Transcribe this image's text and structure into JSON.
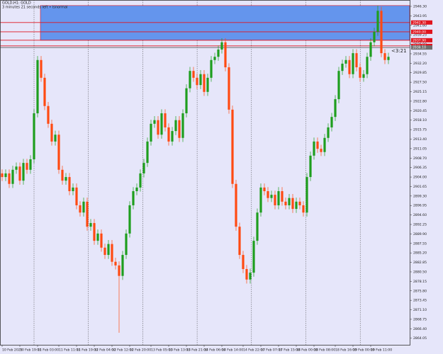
{
  "chart_data": {
    "type": "candlestick",
    "title": "GOLD,H1: GOLD",
    "subtitle": "3 minutes 21 seconds left • Isnormal",
    "timer": "<3:21",
    "up_color": "#1e9e1e",
    "down_color": "#ff4a12",
    "categories": [
      "10 Feb 2025",
      null,
      null,
      null,
      null,
      "10 Feb 19:00",
      null,
      null,
      null,
      null,
      "11 Feb 03:00",
      null,
      null,
      null,
      null,
      null,
      "11 Feb 11:00",
      null,
      null,
      null,
      null,
      "11 Feb 19:00",
      null,
      null,
      null,
      null,
      "12 Feb 04:00",
      null,
      null,
      null,
      null,
      "12 Feb 12:00",
      null,
      null,
      null,
      null,
      "12 Feb 20:00",
      null,
      null,
      null,
      null,
      null,
      "13 Feb 05:00",
      null,
      null,
      null,
      null,
      "13 Feb 13:00",
      null,
      null,
      null,
      null,
      "13 Feb 21:00",
      null,
      null,
      null,
      null,
      "14 Feb 06:00",
      null,
      null,
      null,
      null,
      "14 Feb 14:00",
      null,
      null,
      null,
      null,
      null,
      "14 Feb 22:00",
      null,
      null,
      null,
      null,
      "17 Feb 07:00",
      null,
      null,
      null,
      null,
      "17 Feb 15:00",
      null,
      null,
      null,
      null,
      "18 Feb 00:00",
      null,
      null,
      null,
      null,
      "18 Feb 08:00",
      null,
      null,
      null,
      null,
      null,
      "18 Feb 16:00",
      null,
      null,
      null,
      null,
      "19 Feb 00:00",
      null,
      null,
      null,
      null,
      "19 Feb 11:00",
      null,
      null,
      null,
      null,
      null
    ],
    "ohlc": [
      [
        2904.9,
        2905.9,
        2903.0,
        2904.0
      ],
      [
        2904.0,
        2905.9,
        2903.0,
        2904.9
      ],
      [
        2904.9,
        2905.9,
        2901.3,
        2902.3
      ],
      [
        2902.3,
        2906.8,
        2901.3,
        2905.8
      ],
      [
        2905.8,
        2907.6,
        2904.8,
        2906.6
      ],
      [
        2906.6,
        2907.6,
        2902.1,
        2903.1
      ],
      [
        2903.1,
        2908.5,
        2902.1,
        2907.5
      ],
      [
        2907.5,
        2908.5,
        2904.8,
        2905.8
      ],
      [
        2905.8,
        2909.4,
        2904.8,
        2908.4
      ],
      [
        2908.4,
        2920.8,
        2907.4,
        2919.8
      ],
      [
        2919.8,
        2934.0,
        2918.8,
        2933.0
      ],
      [
        2933.0,
        2934.0,
        2927.6,
        2928.6
      ],
      [
        2928.6,
        2929.6,
        2920.6,
        2921.6
      ],
      [
        2921.6,
        2922.6,
        2916.2,
        2917.2
      ],
      [
        2917.2,
        2918.2,
        2911.8,
        2912.8
      ],
      [
        2912.8,
        2915.5,
        2911.8,
        2914.5
      ],
      [
        2914.5,
        2915.5,
        2904.8,
        2905.8
      ],
      [
        2905.8,
        2906.8,
        2902.1,
        2903.1
      ],
      [
        2903.1,
        2905.0,
        2902.1,
        2904.0
      ],
      [
        2904.0,
        2905.0,
        2899.5,
        2900.5
      ],
      [
        2900.5,
        2902.4,
        2899.5,
        2901.4
      ],
      [
        2901.4,
        2902.4,
        2896.0,
        2897.0
      ],
      [
        2897.0,
        2898.0,
        2894.2,
        2895.2
      ],
      [
        2895.2,
        2898.9,
        2894.2,
        2897.9
      ],
      [
        2897.9,
        2898.9,
        2890.7,
        2891.7
      ],
      [
        2891.7,
        2893.6,
        2890.7,
        2892.6
      ],
      [
        2892.6,
        2893.6,
        2887.2,
        2888.2
      ],
      [
        2888.2,
        2891.0,
        2887.2,
        2890.0
      ],
      [
        2890.0,
        2891.0,
        2885.5,
        2886.5
      ],
      [
        2886.5,
        2887.5,
        2883.7,
        2884.7
      ],
      [
        2884.7,
        2888.4,
        2883.7,
        2887.4
      ],
      [
        2887.4,
        2888.4,
        2882.0,
        2883.0
      ],
      [
        2883.0,
        2884.0,
        2881.1,
        2882.1
      ],
      [
        2882.1,
        2883.1,
        2865.4,
        2879.5
      ],
      [
        2879.5,
        2885.7,
        2878.5,
        2884.7
      ],
      [
        2884.7,
        2891.0,
        2883.7,
        2890.0
      ],
      [
        2890.0,
        2898.0,
        2889.0,
        2897.0
      ],
      [
        2897.0,
        2901.5,
        2896.0,
        2900.5
      ],
      [
        2900.5,
        2902.4,
        2899.5,
        2901.4
      ],
      [
        2901.4,
        2905.9,
        2900.4,
        2904.9
      ],
      [
        2904.9,
        2908.5,
        2903.9,
        2907.5
      ],
      [
        2907.5,
        2913.8,
        2906.5,
        2912.8
      ],
      [
        2912.8,
        2918.2,
        2911.8,
        2917.2
      ],
      [
        2917.2,
        2919.1,
        2916.2,
        2918.1
      ],
      [
        2918.1,
        2919.1,
        2913.5,
        2914.5
      ],
      [
        2914.5,
        2920.8,
        2913.5,
        2919.8
      ],
      [
        2919.8,
        2920.8,
        2915.3,
        2916.3
      ],
      [
        2916.3,
        2917.3,
        2911.8,
        2912.8
      ],
      [
        2912.8,
        2916.4,
        2911.8,
        2915.4
      ],
      [
        2915.4,
        2919.1,
        2914.4,
        2918.1
      ],
      [
        2918.1,
        2919.1,
        2912.7,
        2913.7
      ],
      [
        2913.7,
        2920.8,
        2912.7,
        2919.8
      ],
      [
        2919.8,
        2927.0,
        2918.8,
        2926.0
      ],
      [
        2926.0,
        2931.3,
        2925.0,
        2930.3
      ],
      [
        2930.3,
        2931.3,
        2927.6,
        2928.6
      ],
      [
        2928.6,
        2929.6,
        2925.8,
        2926.8
      ],
      [
        2926.8,
        2930.5,
        2925.8,
        2929.5
      ],
      [
        2929.5,
        2930.5,
        2924.1,
        2925.1
      ],
      [
        2925.1,
        2929.6,
        2924.1,
        2928.6
      ],
      [
        2928.6,
        2934.0,
        2927.6,
        2933.0
      ],
      [
        2933.0,
        2934.8,
        2932.0,
        2933.8
      ],
      [
        2933.8,
        2936.6,
        2932.8,
        2935.6
      ],
      [
        2935.6,
        2938.4,
        2934.6,
        2937.4
      ],
      [
        2937.4,
        2938.4,
        2930.2,
        2931.2
      ],
      [
        2931.2,
        2932.2,
        2919.7,
        2920.7
      ],
      [
        2920.7,
        2921.7,
        2901.3,
        2902.3
      ],
      [
        2902.3,
        2903.3,
        2890.7,
        2891.7
      ],
      [
        2891.7,
        2892.7,
        2883.7,
        2884.7
      ],
      [
        2884.7,
        2885.7,
        2880.2,
        2881.2
      ],
      [
        2881.2,
        2882.2,
        2877.6,
        2878.6
      ],
      [
        2878.6,
        2881.3,
        2877.6,
        2880.3
      ],
      [
        2880.3,
        2889.2,
        2879.3,
        2888.2
      ],
      [
        2888.2,
        2896.2,
        2887.2,
        2895.2
      ],
      [
        2895.2,
        2902.4,
        2894.2,
        2901.4
      ],
      [
        2901.4,
        2902.4,
        2899.5,
        2900.5
      ],
      [
        2900.5,
        2901.5,
        2897.8,
        2898.8
      ],
      [
        2898.8,
        2900.6,
        2897.8,
        2899.6
      ],
      [
        2899.6,
        2900.6,
        2896.0,
        2897.0
      ],
      [
        2897.0,
        2901.5,
        2896.0,
        2900.5
      ],
      [
        2900.5,
        2901.5,
        2896.9,
        2897.9
      ],
      [
        2897.9,
        2898.9,
        2896.0,
        2897.0
      ],
      [
        2897.0,
        2899.8,
        2896.0,
        2898.8
      ],
      [
        2898.8,
        2899.8,
        2895.1,
        2896.1
      ],
      [
        2896.1,
        2898.9,
        2895.1,
        2897.9
      ],
      [
        2897.9,
        2898.9,
        2896.0,
        2897.0
      ],
      [
        2897.0,
        2898.0,
        2894.2,
        2895.2
      ],
      [
        2895.2,
        2905.0,
        2894.2,
        2904.0
      ],
      [
        2904.0,
        2910.3,
        2903.0,
        2909.3
      ],
      [
        2909.3,
        2913.8,
        2908.3,
        2912.8
      ],
      [
        2912.8,
        2913.8,
        2910.0,
        2911.0
      ],
      [
        2911.0,
        2912.0,
        2909.2,
        2910.2
      ],
      [
        2910.2,
        2914.7,
        2909.2,
        2913.7
      ],
      [
        2913.7,
        2917.3,
        2912.7,
        2916.3
      ],
      [
        2916.3,
        2919.9,
        2915.3,
        2918.9
      ],
      [
        2918.9,
        2924.3,
        2917.9,
        2923.3
      ],
      [
        2923.3,
        2931.3,
        2922.3,
        2930.3
      ],
      [
        2930.3,
        2933.1,
        2929.3,
        2932.1
      ],
      [
        2932.1,
        2934.0,
        2931.1,
        2933.0
      ],
      [
        2933.0,
        2934.0,
        2928.5,
        2929.5
      ],
      [
        2929.5,
        2935.7,
        2928.5,
        2934.7
      ],
      [
        2934.7,
        2935.7,
        2930.2,
        2931.2
      ],
      [
        2931.2,
        2932.2,
        2927.6,
        2928.6
      ],
      [
        2928.6,
        2930.5,
        2927.6,
        2929.5
      ],
      [
        2929.5,
        2934.8,
        2928.5,
        2933.8
      ],
      [
        2933.8,
        2938.4,
        2932.8,
        2937.4
      ],
      [
        2937.4,
        2941.0,
        2936.4,
        2940.0
      ],
      [
        2940.0,
        2946.5,
        2939.0,
        2945.2
      ],
      [
        2945.2,
        2946.2,
        2933.7,
        2934.7
      ],
      [
        2934.7,
        2935.7,
        2932.0,
        2933.0
      ],
      [
        2933.0,
        2934.8,
        2932.0,
        2933.8
      ]
    ],
    "zone": {
      "from": 2937.9,
      "to": 2946.5,
      "color": "#6495ed"
    },
    "levels": [
      {
        "value": 2942.3,
        "label": "2942.30",
        "color": "#e0141e"
      },
      {
        "value": 2940.0,
        "label": "2940.00",
        "color": "#e0141e"
      },
      {
        "value": 2937.9,
        "label": "2937.90",
        "color": "#e0141e"
      },
      {
        "value": 2936.5,
        "label": "2936.50",
        "color": "#e0141e"
      },
      {
        "value": 2936.1,
        "label": "2936.10",
        "color": "#6e6e6e"
      }
    ],
    "ylim": [
      2862.6,
      2947.0
    ],
    "yticks": [
      {
        "value": 2946.3,
        "label": "2946.30"
      },
      {
        "value": 2943.95,
        "label": "2943.95"
      },
      {
        "value": 2941.6,
        "label": "2941.60"
      },
      {
        "value": 2939.25,
        "label": "2939.25"
      },
      {
        "value": 2936.9,
        "label": "2936.90"
      },
      {
        "value": 2934.55,
        "label": "2934.55"
      },
      {
        "value": 2932.2,
        "label": "2932.20"
      },
      {
        "value": 2929.85,
        "label": "2929.85"
      },
      {
        "value": 2927.5,
        "label": "2927.50"
      },
      {
        "value": 2925.15,
        "label": "2925.15"
      },
      {
        "value": 2922.8,
        "label": "2922.80"
      },
      {
        "value": 2920.45,
        "label": "2920.45"
      },
      {
        "value": 2918.1,
        "label": "2918.10"
      },
      {
        "value": 2915.75,
        "label": "2915.75"
      },
      {
        "value": 2913.4,
        "label": "2913.40"
      },
      {
        "value": 2911.05,
        "label": "2911.05"
      },
      {
        "value": 2908.7,
        "label": "2908.70"
      },
      {
        "value": 2906.35,
        "label": "2906.35"
      },
      {
        "value": 2904.0,
        "label": "2904.00"
      },
      {
        "value": 2901.65,
        "label": "2901.65"
      },
      {
        "value": 2899.3,
        "label": "2899.30"
      },
      {
        "value": 2896.95,
        "label": "2896.95"
      },
      {
        "value": 2894.6,
        "label": "2894.60"
      },
      {
        "value": 2892.25,
        "label": "2892.25"
      },
      {
        "value": 2889.9,
        "label": "2889.90"
      },
      {
        "value": 2887.55,
        "label": "2887.55"
      },
      {
        "value": 2885.2,
        "label": "2885.20"
      },
      {
        "value": 2882.85,
        "label": "2882.85"
      },
      {
        "value": 2880.5,
        "label": "2880.50"
      },
      {
        "value": 2878.15,
        "label": "2878.15"
      },
      {
        "value": 2875.8,
        "label": "2875.80"
      },
      {
        "value": 2873.45,
        "label": "2873.45"
      },
      {
        "value": 2871.1,
        "label": "2871.10"
      },
      {
        "value": 2868.75,
        "label": "2868.75"
      },
      {
        "value": 2866.4,
        "label": "2866.40"
      },
      {
        "value": 2864.05,
        "label": "2864.05"
      }
    ]
  }
}
